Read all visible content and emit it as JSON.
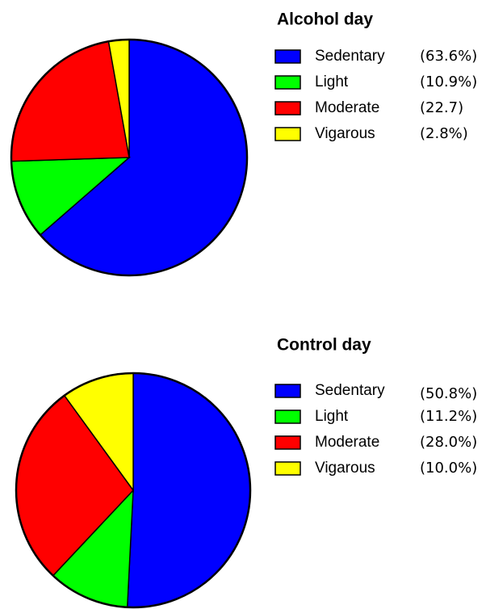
{
  "chart_data": [
    {
      "type": "pie",
      "title": "Alcohol day",
      "categories": [
        "Sedentary",
        "Light",
        "Moderate",
        "Vigarous"
      ],
      "values": [
        63.6,
        10.9,
        22.7,
        2.8
      ],
      "value_labels": [
        "(63.6%)",
        "(10.9%)",
        "(22.7)",
        "(2.8%)"
      ],
      "colors": [
        "#0000ff",
        "#00ff00",
        "#ff0000",
        "#ffff00"
      ]
    },
    {
      "type": "pie",
      "title": "Control day",
      "categories": [
        "Sedentary",
        "Light",
        "Moderate",
        "Vigarous"
      ],
      "values": [
        50.8,
        11.2,
        28.0,
        10.0
      ],
      "value_labels": [
        "(50.8%)",
        "(11.2%)",
        "(28.0%)",
        "(10.0%)"
      ],
      "colors": [
        "#0000ff",
        "#00ff00",
        "#ff0000",
        "#ffff00"
      ]
    }
  ]
}
